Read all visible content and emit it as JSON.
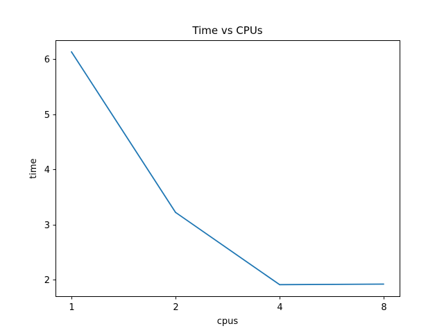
{
  "chart_data": {
    "type": "line",
    "title": "Time vs CPUs",
    "xlabel": "cpus",
    "ylabel": "time",
    "categories": [
      "1",
      "2",
      "4",
      "8"
    ],
    "series": [
      {
        "values": [
          6.13,
          3.22,
          1.91,
          1.92
        ],
        "color": "#1f77b4"
      }
    ],
    "yticks": [
      2,
      3,
      4,
      5,
      6
    ],
    "ylim": [
      1.7,
      6.34
    ],
    "grid": false,
    "legend": "none"
  }
}
